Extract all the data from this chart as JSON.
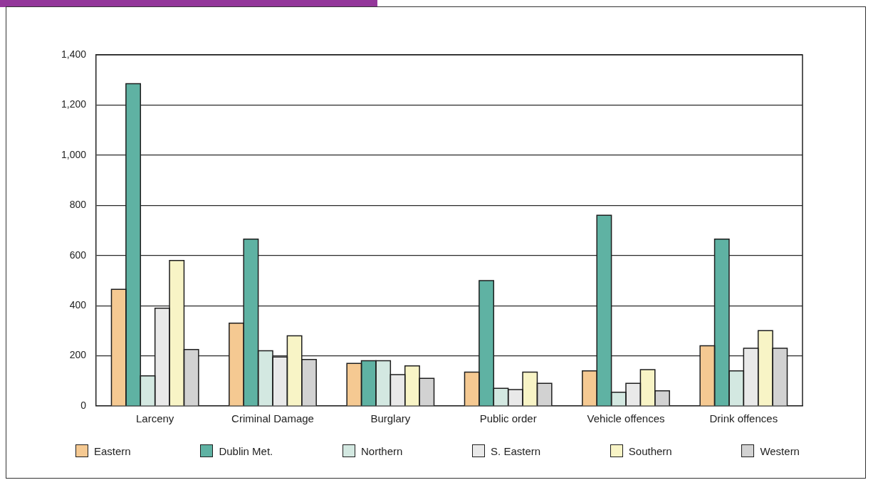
{
  "chart_data": {
    "type": "bar",
    "categories": [
      "Larceny",
      "Criminal Damage",
      "Burglary",
      "Public order",
      "Vehicle offences",
      "Drink offences"
    ],
    "series": [
      {
        "name": "Eastern",
        "color": "#f5c992",
        "values": [
          465,
          330,
          170,
          135,
          140,
          240
        ]
      },
      {
        "name": "Dublin Met.",
        "color": "#5fb2a3",
        "values": [
          1285,
          665,
          180,
          500,
          760,
          665
        ]
      },
      {
        "name": "Northern",
        "color": "#d3e8e1",
        "values": [
          120,
          220,
          180,
          70,
          55,
          140
        ]
      },
      {
        "name": "S. Eastern",
        "color": "#e9e9e9",
        "values": [
          390,
          195,
          125,
          65,
          90,
          230
        ]
      },
      {
        "name": "Southern",
        "color": "#f8f4c6",
        "values": [
          580,
          280,
          160,
          135,
          145,
          300
        ]
      },
      {
        "name": "Western",
        "color": "#d2d2d2",
        "values": [
          225,
          185,
          110,
          90,
          60,
          230
        ]
      }
    ],
    "ylim": [
      0,
      1400
    ],
    "yticks": [
      0,
      200,
      400,
      600,
      800,
      {
        "value": 1000,
        "label": "1,000"
      },
      {
        "value": 1200,
        "label": "1,200"
      },
      {
        "value": 1400,
        "label": "1,400"
      }
    ],
    "grid": "y",
    "legend": "bottom"
  }
}
